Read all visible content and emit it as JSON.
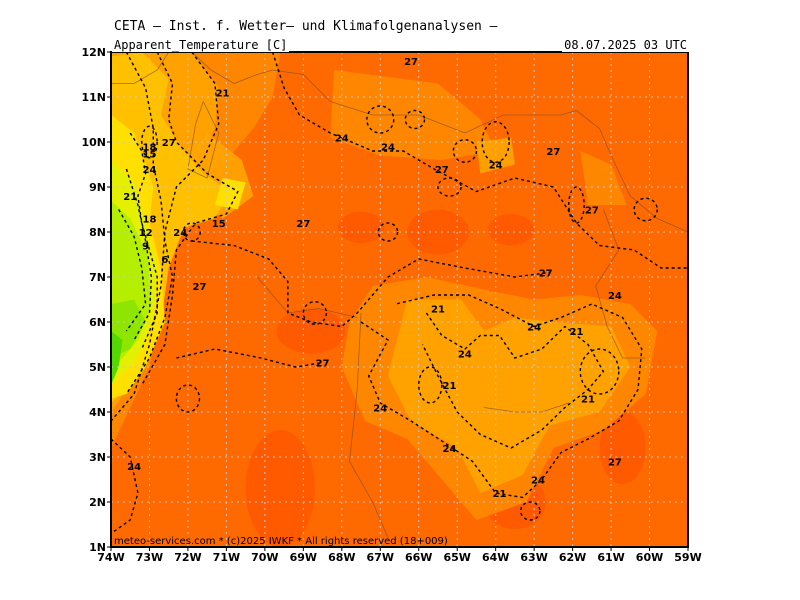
{
  "header": {
    "title": "CETA – Inst. f. Wetter– und Klimafolgenanalysen –",
    "parameter": "Apparent_Temperature [C]",
    "datetime": "08.07.2025  03 UTC"
  },
  "footer": {
    "credit": "meteo-services.com * (c)2025 IWKF * All rights reserved (18+009)"
  },
  "map": {
    "lon_range": [
      -74,
      -59
    ],
    "lat_range": [
      1,
      12
    ],
    "lon_ticks": [
      "74W",
      "73W",
      "72W",
      "71W",
      "70W",
      "69W",
      "68W",
      "67W",
      "66W",
      "65W",
      "64W",
      "63W",
      "62W",
      "61W",
      "60W",
      "59W"
    ],
    "lat_ticks": [
      "1N",
      "2N",
      "3N",
      "4N",
      "5N",
      "6N",
      "7N",
      "8N",
      "9N",
      "10N",
      "11N",
      "12N"
    ],
    "colors": {
      "t27": "#ff6a00",
      "t25": "#ff8c00",
      "t23": "#ffa500",
      "t21": "#ffc000",
      "t18": "#ffe000",
      "t15": "#e5f000",
      "t12": "#b5ee00",
      "t9": "#8ee500",
      "t6": "#54d800",
      "hot": "#ff4d00"
    },
    "contour_labels": [
      {
        "text": "27",
        "lon": -66.2,
        "lat": 11.8
      },
      {
        "text": "21",
        "lon": -71.1,
        "lat": 11.1
      },
      {
        "text": "24",
        "lon": -68.0,
        "lat": 10.1
      },
      {
        "text": "24",
        "lon": -66.8,
        "lat": 9.9
      },
      {
        "text": "27",
        "lon": -72.5,
        "lat": 10.0
      },
      {
        "text": "18",
        "lon": -73.0,
        "lat": 9.9
      },
      {
        "text": "15",
        "lon": -73.0,
        "lat": 9.75
      },
      {
        "text": "24",
        "lon": -73.0,
        "lat": 9.4
      },
      {
        "text": "21",
        "lon": -73.5,
        "lat": 8.8
      },
      {
        "text": "27",
        "lon": -65.4,
        "lat": 9.4
      },
      {
        "text": "24",
        "lon": -64.0,
        "lat": 9.5
      },
      {
        "text": "27",
        "lon": -62.5,
        "lat": 9.8
      },
      {
        "text": "27",
        "lon": -61.5,
        "lat": 8.5
      },
      {
        "text": "15",
        "lon": -71.2,
        "lat": 8.2
      },
      {
        "text": "24",
        "lon": -72.2,
        "lat": 8.0
      },
      {
        "text": "27",
        "lon": -69.0,
        "lat": 8.2
      },
      {
        "text": "18",
        "lon": -73.0,
        "lat": 8.3
      },
      {
        "text": "12",
        "lon": -73.1,
        "lat": 8.0
      },
      {
        "text": "9",
        "lon": -73.1,
        "lat": 7.7
      },
      {
        "text": "6",
        "lon": -72.6,
        "lat": 7.4
      },
      {
        "text": "27",
        "lon": -71.7,
        "lat": 6.8
      },
      {
        "text": "27",
        "lon": -62.7,
        "lat": 7.1
      },
      {
        "text": "24",
        "lon": -60.9,
        "lat": 6.6
      },
      {
        "text": "21",
        "lon": -65.5,
        "lat": 6.3
      },
      {
        "text": "24",
        "lon": -63.0,
        "lat": 5.9
      },
      {
        "text": "21",
        "lon": -61.9,
        "lat": 5.8
      },
      {
        "text": "24",
        "lon": -64.8,
        "lat": 5.3
      },
      {
        "text": "27",
        "lon": -68.5,
        "lat": 5.1
      },
      {
        "text": "21",
        "lon": -65.2,
        "lat": 4.6
      },
      {
        "text": "21",
        "lon": -61.6,
        "lat": 4.3
      },
      {
        "text": "24",
        "lon": -67.0,
        "lat": 4.1
      },
      {
        "text": "24",
        "lon": -65.2,
        "lat": 3.2
      },
      {
        "text": "27",
        "lon": -60.9,
        "lat": 2.9
      },
      {
        "text": "24",
        "lon": -73.4,
        "lat": 2.8
      },
      {
        "text": "24",
        "lon": -62.9,
        "lat": 2.5
      },
      {
        "text": "21",
        "lon": -63.9,
        "lat": 2.2
      }
    ]
  }
}
